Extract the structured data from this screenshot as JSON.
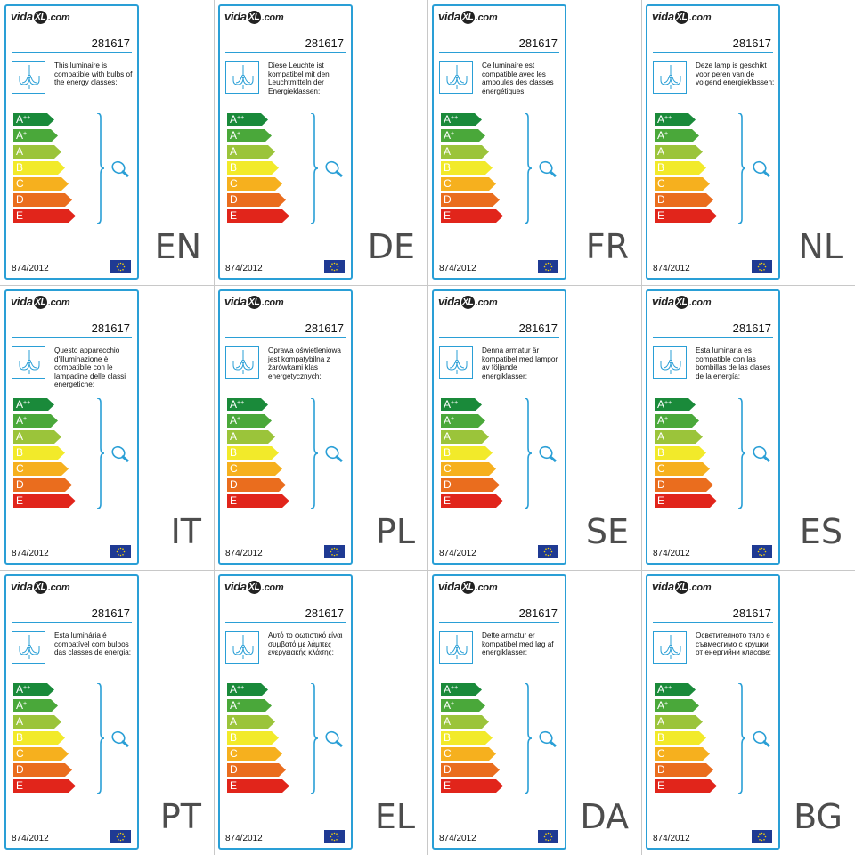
{
  "brand": {
    "prefix": "vida",
    "mark": "XL",
    "suffix": ".com"
  },
  "model_number": "281617",
  "regulation": "874/2012",
  "energy_classes": [
    {
      "letter": "A",
      "sup": "++",
      "color": "#1a8a3a"
    },
    {
      "letter": "A",
      "sup": "+",
      "color": "#4aa83a"
    },
    {
      "letter": "A",
      "sup": "",
      "color": "#9bc43a"
    },
    {
      "letter": "B",
      "sup": "",
      "color": "#f2ea2a"
    },
    {
      "letter": "C",
      "sup": "",
      "color": "#f6b01e"
    },
    {
      "letter": "D",
      "sup": "",
      "color": "#ea6d1e"
    },
    {
      "letter": "E",
      "sup": "",
      "color": "#e1251b"
    }
  ],
  "accent_color": "#2a9fd6",
  "icons": {
    "luminaire": "chandelier-icon",
    "bulb": "bulb-icon",
    "flag": "eu-flag-icon"
  },
  "labels": [
    {
      "lang": "EN",
      "text": "This luminaire is compatible with bulbs of the energy classes:"
    },
    {
      "lang": "DE",
      "text": "Diese Leuchte ist kompatibel mit den Leuchtmitteln der Energieklassen:"
    },
    {
      "lang": "FR",
      "text": "Ce luminaire est compatible avec les ampoules des classes énergétiques:"
    },
    {
      "lang": "NL",
      "text": "Deze lamp is geschikt voor peren van de volgend energieklassen:"
    },
    {
      "lang": "IT",
      "text": "Questo apparecchio d'illuminazione è compatibile con le lampadine delle classi energetiche:"
    },
    {
      "lang": "PL",
      "text": "Oprawa oświetleniowa jest kompatybilna z żarówkami klas energetycznych:"
    },
    {
      "lang": "SE",
      "text": "Denna armatur är kompatibel med lampor av följande energiklasser:"
    },
    {
      "lang": "ES",
      "text": "Esta luminaria es compatible con las bombillas de las clases de la energía:"
    },
    {
      "lang": "PT",
      "text": "Esta luminária é compatível com bulbos das classes de energia:"
    },
    {
      "lang": "EL",
      "text": "Αυτό το φωτιστικό είναι συμβατό με λάμπες ενεργειακής κλάσης:"
    },
    {
      "lang": "DA",
      "text": "Dette armatur er kompatibel med løg af energiklasser:"
    },
    {
      "lang": "BG",
      "text": "Осветителното тяло е съвместимо с крушки от енергийни класове:"
    }
  ]
}
